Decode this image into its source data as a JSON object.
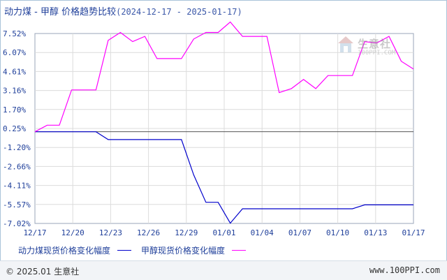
{
  "header": {
    "title": "动力煤 - 甲醇 价格趋势比较",
    "date_range": "(2024-12-17 - 2025-01-17)"
  },
  "watermark": {
    "name": "生意社",
    "url": "100PPI.COM"
  },
  "footer": {
    "copyright": "© 2025.01 生意社",
    "site": "www.100PPI.com"
  },
  "chart_data": {
    "type": "line",
    "title": "动力煤 - 甲醇 价格趋势比较",
    "xlabel": "",
    "ylabel": "",
    "ylim": [
      -7.02,
      7.52
    ],
    "y_ticks": [
      "7.52%",
      "6.07%",
      "4.61%",
      "3.16%",
      "1.70%",
      "0.25%",
      "-1.20%",
      "-2.66%",
      "-4.11%",
      "-5.57%",
      "-7.02%"
    ],
    "x_tick_labels": [
      "12/17",
      "12/20",
      "12/23",
      "12/26",
      "12/29",
      "01/01",
      "01/04",
      "01/07",
      "01/10",
      "01/13",
      "01/17"
    ],
    "grid": true,
    "legend_position": "bottom",
    "x": [
      "12/17",
      "12/18",
      "12/19",
      "12/20",
      "12/21",
      "12/22",
      "12/23",
      "12/24",
      "12/25",
      "12/26",
      "12/27",
      "12/28",
      "12/29",
      "12/30",
      "12/31",
      "01/01",
      "01/02",
      "01/03",
      "01/04",
      "01/05",
      "01/06",
      "01/07",
      "01/08",
      "01/09",
      "01/10",
      "01/11",
      "01/12",
      "01/13",
      "01/14",
      "01/15",
      "01/16",
      "01/17"
    ],
    "series": [
      {
        "name": "动力煤现货价格变化幅度",
        "color": "#0000cc",
        "values": [
          0.0,
          0.0,
          0.0,
          0.0,
          0.0,
          0.0,
          -0.6,
          -0.6,
          -0.6,
          -0.6,
          -0.6,
          -0.6,
          -0.6,
          -3.3,
          -5.4,
          -5.4,
          -7.0,
          -5.9,
          -5.9,
          -5.9,
          -5.9,
          -5.9,
          -5.9,
          -5.9,
          -5.9,
          -5.9,
          -5.9,
          -5.6,
          -5.6,
          -5.6,
          -5.6,
          -5.6
        ]
      },
      {
        "name": "甲醇现货价格变化幅度",
        "color": "#ff00ff",
        "values": [
          0.0,
          0.5,
          0.5,
          3.2,
          3.2,
          3.2,
          7.0,
          7.6,
          6.9,
          7.3,
          5.6,
          5.6,
          5.6,
          7.1,
          7.6,
          7.6,
          8.4,
          7.3,
          7.3,
          7.3,
          3.0,
          3.3,
          4.0,
          3.3,
          4.3,
          4.3,
          4.3,
          6.9,
          6.8,
          7.3,
          5.4,
          4.8
        ]
      }
    ]
  }
}
